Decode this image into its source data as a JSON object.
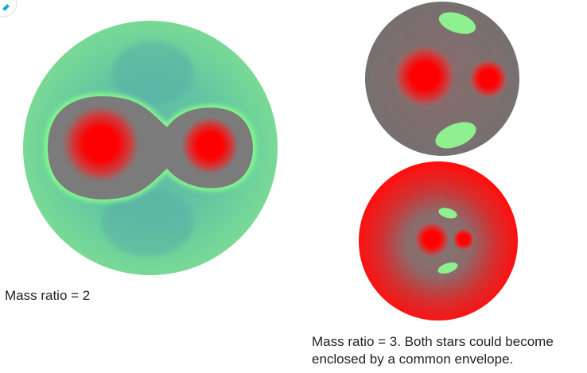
{
  "diagram": {
    "panels": [
      {
        "caption": "Mass ratio = 2",
        "colors": {
          "envelope": "#6fd39a",
          "envelope_shade": "#5ab4a6",
          "ring": "#88ff88",
          "lobe": "#7b7b7b",
          "core": "#ff0000"
        }
      },
      {
        "caption_line1": "Mass ratio = 3. Both stars could become",
        "caption_line2": "enclosed by a common envelope.",
        "colors": {
          "top_disk": "#7a6f6f",
          "bottom_disk": "#ff1a1a",
          "spot": "#8ef08e",
          "core": "#ff0000"
        }
      }
    ]
  },
  "badge": {
    "icon": "pencil-icon",
    "color": "#1aa9d6"
  }
}
